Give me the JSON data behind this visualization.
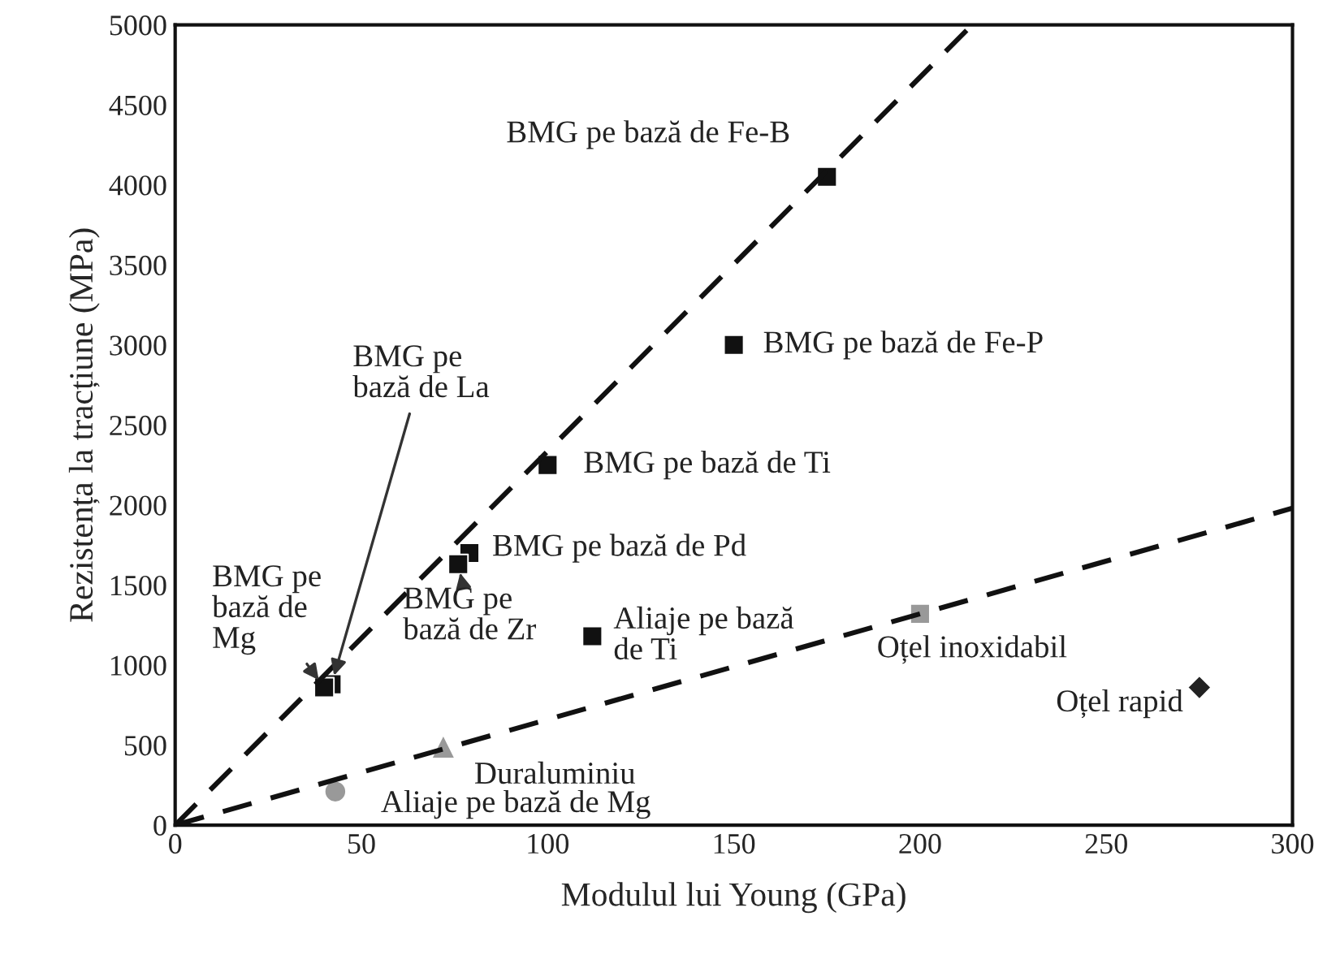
{
  "chart_data": {
    "type": "scatter",
    "xlabel": "Modulul lui Young (GPa)",
    "ylabel": "Rezistența la tracțiune (MPa)",
    "xlim": [
      0,
      300
    ],
    "ylim": [
      0,
      5000
    ],
    "xticks": [
      0,
      50,
      100,
      150,
      200,
      250,
      300
    ],
    "yticks": [
      0,
      500,
      1000,
      1500,
      2000,
      2500,
      3000,
      3500,
      4000,
      4500,
      5000
    ],
    "grid": false,
    "legend": false,
    "series": [
      {
        "type": "line",
        "line_style": "dashed",
        "marker": "none",
        "color": "#111111",
        "x": [
          0,
          214
        ],
        "values": [
          0,
          5000
        ]
      },
      {
        "type": "line",
        "line_style": "dashed",
        "marker": "none",
        "color": "#111111",
        "x": [
          0,
          300
        ],
        "values": [
          0,
          1980
        ]
      },
      {
        "marker": "square",
        "color": "#111111",
        "x": [
          175,
          150,
          100,
          79,
          76,
          42,
          40,
          112
        ],
        "values": [
          4050,
          3000,
          2250,
          1700,
          1630,
          880,
          860,
          1180
        ]
      },
      {
        "marker": "square",
        "color": "#999999",
        "x": [
          200
        ],
        "values": [
          1320
        ]
      },
      {
        "marker": "triangle",
        "color": "#999999",
        "x": [
          72
        ],
        "values": [
          490
        ]
      },
      {
        "marker": "circle",
        "color": "#999999",
        "x": [
          43
        ],
        "values": [
          210
        ]
      },
      {
        "marker": "diamond",
        "color": "#222222",
        "x": [
          275
        ],
        "values": [
          860
        ]
      }
    ],
    "annotations": [
      {
        "text": "BMG pe bază de Fe-B",
        "x": 175,
        "y": 4050
      },
      {
        "text": "BMG pe bază de Fe-P",
        "x": 150,
        "y": 3000
      },
      {
        "text": "BMG pe bază de Ti",
        "x": 100,
        "y": 2250
      },
      {
        "text": "BMG pe bază de Pd",
        "x": 79,
        "y": 1700
      },
      {
        "text": "BMG pe\nbază de Zr",
        "x": 76,
        "y": 1630
      },
      {
        "text": "BMG pe\nbază de La",
        "x": 42,
        "y": 880
      },
      {
        "text": "BMG pe\nbază de\nMg",
        "x": 40,
        "y": 860
      },
      {
        "text": "Aliaje pe bază\nde Ti",
        "x": 112,
        "y": 1180
      },
      {
        "text": "Oțel inoxidabil",
        "x": 200,
        "y": 1320
      },
      {
        "text": "Oțel rapid",
        "x": 275,
        "y": 860
      },
      {
        "text": "Duraluminiu",
        "x": 72,
        "y": 490
      },
      {
        "text": "Aliaje pe bază de Mg",
        "x": 43,
        "y": 210
      }
    ]
  }
}
